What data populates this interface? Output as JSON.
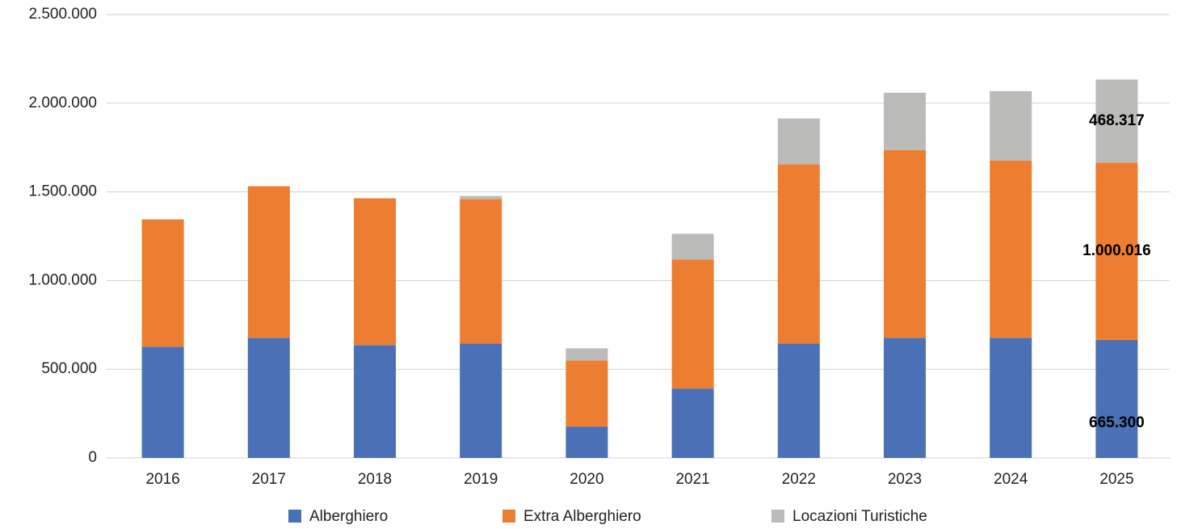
{
  "chart_data": {
    "type": "stacked-bar",
    "categories": [
      "2016",
      "2017",
      "2018",
      "2019",
      "2020",
      "2021",
      "2022",
      "2023",
      "2024",
      "2025"
    ],
    "series": [
      {
        "name": "Alberghiero",
        "color": "#4a70b6",
        "values": [
          627000,
          677000,
          636000,
          645000,
          177000,
          391000,
          645000,
          677000,
          677000,
          665300
        ],
        "value_labels": [
          null,
          null,
          null,
          null,
          null,
          null,
          null,
          null,
          null,
          "665.300"
        ]
      },
      {
        "name": "Extra Alberghiero",
        "color": "#ed7d31",
        "values": [
          718000,
          855000,
          828000,
          814000,
          373000,
          727000,
          1010000,
          1059000,
          1000000,
          1000016
        ],
        "value_labels": [
          null,
          null,
          null,
          null,
          null,
          null,
          null,
          null,
          null,
          "1.000.016"
        ]
      },
      {
        "name": "Locazioni Turistiche",
        "color": "#bbbbb9",
        "values": [
          0,
          0,
          0,
          18000,
          68000,
          146000,
          259000,
          323000,
          391000,
          468317
        ],
        "value_labels": [
          null,
          null,
          null,
          null,
          null,
          null,
          null,
          null,
          null,
          "468.317"
        ]
      }
    ],
    "ylim": [
      0,
      2500000
    ],
    "yticks": [
      0,
      {
        "value": 500000,
        "label": "500.000"
      },
      {
        "value": 1000000,
        "label": "1.000.000"
      },
      {
        "value": 1500000,
        "label": "1.500.000"
      },
      {
        "value": 2000000,
        "label": "2.000.000"
      },
      {
        "value": 2500000,
        "label": "2.500.000"
      }
    ],
    "grid": true,
    "legend": "bottom"
  }
}
